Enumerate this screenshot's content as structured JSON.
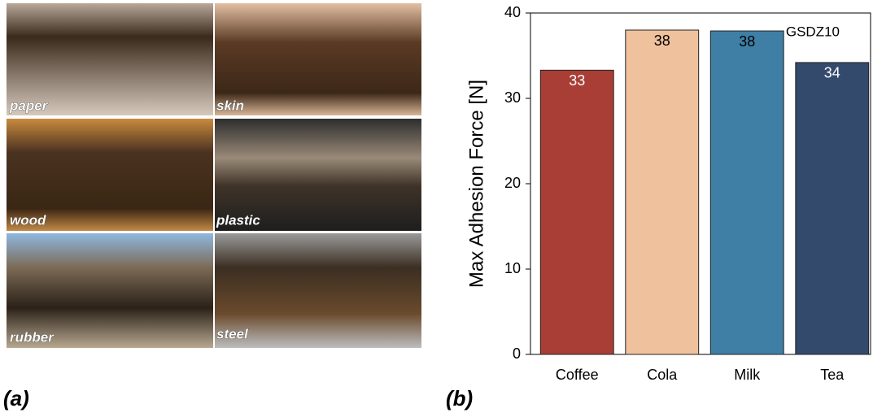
{
  "panel_a": {
    "labels": [
      "paper",
      "skin",
      "wood",
      "plastic",
      "rubber",
      "steel"
    ],
    "caption": "(a)"
  },
  "panel_b": {
    "caption": "(b)"
  },
  "chart_data": {
    "type": "bar",
    "annotation": "GSDZ10",
    "y_label": "Max Adhesion Force [N]",
    "categories": [
      "Coffee",
      "Cola",
      "Milk",
      "Tea"
    ],
    "values": [
      33.3,
      38,
      37.9,
      34.2
    ],
    "value_labels": [
      "33",
      "38",
      "38",
      "34"
    ],
    "colors": [
      "#a83e36",
      "#efc19d",
      "#3f7fa5",
      "#344a6c"
    ],
    "value_label_colors": [
      "#ffffff",
      "#000000",
      "#000000",
      "#ffffff"
    ],
    "ylim": [
      0,
      40
    ],
    "yticks": [
      0,
      10,
      20,
      30,
      40
    ],
    "grid": false
  }
}
